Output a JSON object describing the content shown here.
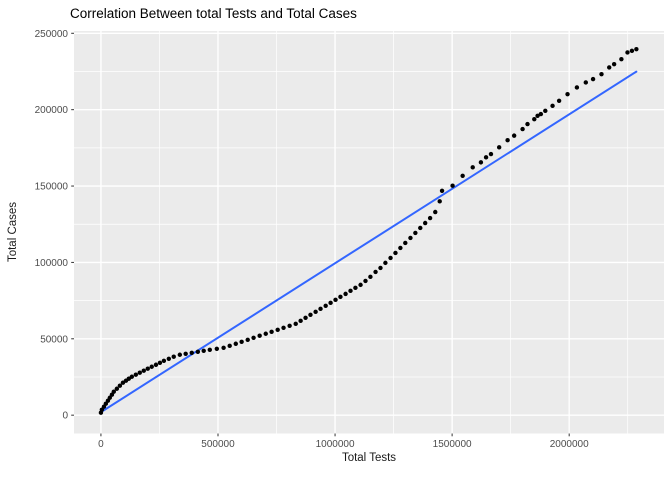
{
  "chart_data": {
    "type": "scatter",
    "title": "Correlation Between total Tests and Total Cases",
    "xlabel": "Total Tests",
    "ylabel": "Total Cases",
    "x_domain": [
      -115000,
      2405000
    ],
    "y_domain": [
      -12000,
      251500
    ],
    "x_ticks": [
      0,
      500000,
      1000000,
      1500000,
      2000000
    ],
    "y_ticks": [
      0,
      50000,
      100000,
      150000,
      200000,
      250000
    ],
    "x_minor_ticks": [
      250000,
      750000,
      1250000,
      1750000,
      2250000
    ],
    "y_minor_ticks": [
      25000,
      75000,
      125000,
      175000,
      225000
    ],
    "grid": true,
    "legend": "none",
    "colors": {
      "panel_bg": "#EBEBEB",
      "grid_major": "#FFFFFF",
      "grid_minor": "#FFFFFF",
      "point": "#000000",
      "regression_line": "#3366FF",
      "tick_label": "#4D4D4D",
      "tick_mark": "#333333",
      "title_text": "#000000"
    },
    "points": [
      [
        0,
        1600
      ],
      [
        4000,
        3600
      ],
      [
        13000,
        5550
      ],
      [
        21000,
        7500
      ],
      [
        30000,
        9500
      ],
      [
        38000,
        11400
      ],
      [
        47000,
        13400
      ],
      [
        55000,
        15400
      ],
      [
        68000,
        17300
      ],
      [
        81000,
        19300
      ],
      [
        94000,
        21250
      ],
      [
        107000,
        22550
      ],
      [
        119000,
        23850
      ],
      [
        132000,
        25150
      ],
      [
        149000,
        26500
      ],
      [
        166000,
        27800
      ],
      [
        183000,
        29100
      ],
      [
        200000,
        30400
      ],
      [
        217000,
        31700
      ],
      [
        235000,
        33000
      ],
      [
        252000,
        34300
      ],
      [
        269000,
        35600
      ],
      [
        290000,
        36900
      ],
      [
        311000,
        38250
      ],
      [
        337000,
        39550
      ],
      [
        362000,
        40200
      ],
      [
        388000,
        40850
      ],
      [
        414000,
        41500
      ],
      [
        439000,
        42150
      ],
      [
        465000,
        42800
      ],
      [
        495000,
        43450
      ],
      [
        524000,
        44100
      ],
      [
        550000,
        45400
      ],
      [
        576000,
        46750
      ],
      [
        601000,
        48050
      ],
      [
        627000,
        49350
      ],
      [
        652000,
        50650
      ],
      [
        678000,
        52000
      ],
      [
        704000,
        53300
      ],
      [
        729000,
        54600
      ],
      [
        755000,
        55900
      ],
      [
        780000,
        57200
      ],
      [
        806000,
        58500
      ],
      [
        832000,
        59800
      ],
      [
        853000,
        61750
      ],
      [
        874000,
        63750
      ],
      [
        895000,
        65700
      ],
      [
        917000,
        67650
      ],
      [
        938000,
        69600
      ],
      [
        960000,
        71600
      ],
      [
        981000,
        73550
      ],
      [
        1002000,
        75500
      ],
      [
        1023000,
        77450
      ],
      [
        1045000,
        79400
      ],
      [
        1066000,
        81400
      ],
      [
        1087000,
        83350
      ],
      [
        1109000,
        85300
      ],
      [
        1130000,
        87900
      ],
      [
        1151000,
        90550
      ],
      [
        1173000,
        93800
      ],
      [
        1194000,
        96400
      ],
      [
        1215000,
        99700
      ],
      [
        1237000,
        102950
      ],
      [
        1258000,
        106200
      ],
      [
        1279000,
        109500
      ],
      [
        1300000,
        112750
      ],
      [
        1322000,
        116050
      ],
      [
        1343000,
        119300
      ],
      [
        1364000,
        122550
      ],
      [
        1385000,
        125800
      ],
      [
        1406000,
        129050
      ],
      [
        1428000,
        133000
      ],
      [
        1447000,
        140000
      ],
      [
        1457000,
        146900
      ],
      [
        1502000,
        150200
      ],
      [
        1545000,
        156700
      ],
      [
        1588000,
        162250
      ],
      [
        1623000,
        165500
      ],
      [
        1645000,
        168800
      ],
      [
        1666000,
        170950
      ],
      [
        1701000,
        175350
      ],
      [
        1737000,
        180000
      ],
      [
        1765000,
        183000
      ],
      [
        1801000,
        187300
      ],
      [
        1822000,
        190550
      ],
      [
        1851000,
        193800
      ],
      [
        1865000,
        196000
      ],
      [
        1879000,
        197100
      ],
      [
        1898000,
        199250
      ],
      [
        1929000,
        202500
      ],
      [
        1957000,
        205800
      ],
      [
        1993000,
        210150
      ],
      [
        2033000,
        214550
      ],
      [
        2071000,
        217800
      ],
      [
        2102000,
        220000
      ],
      [
        2138000,
        223250
      ],
      [
        2171000,
        227650
      ],
      [
        2192000,
        229800
      ],
      [
        2223000,
        233050
      ],
      [
        2249000,
        237450
      ],
      [
        2268000,
        238500
      ],
      [
        2287000,
        239600
      ]
    ],
    "regression_line": {
      "x": [
        0,
        2287000
      ],
      "y": [
        2000,
        224900
      ]
    }
  }
}
